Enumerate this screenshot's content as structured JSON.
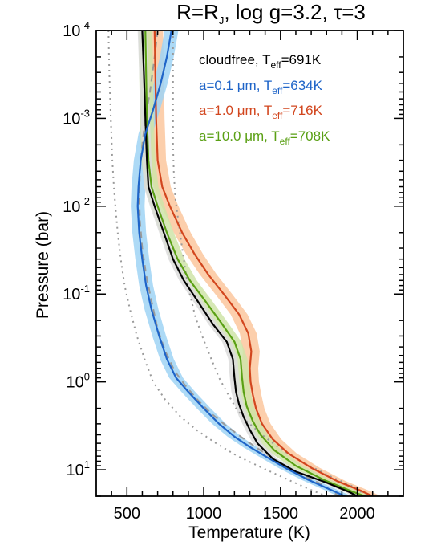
{
  "chart_data": {
    "type": "line",
    "title_parts": {
      "a": "R=R",
      "sub": "J",
      "b": ", log g=3.2, ",
      "tau": "τ",
      "c": "=3"
    },
    "xlabel": "Temperature (K)",
    "ylabel": "Pressure (bar)",
    "xlim": [
      300,
      2300
    ],
    "ylim": [
      0.0001,
      20
    ],
    "yscale": "log",
    "y_inverted": true,
    "x_ticks": [
      500,
      1000,
      1500,
      2000
    ],
    "y_ticks": [
      {
        "value": 0.0001,
        "base": "10",
        "exp": "-4"
      },
      {
        "value": 0.001,
        "base": "10",
        "exp": "-3"
      },
      {
        "value": 0.01,
        "base": "10",
        "exp": "-2"
      },
      {
        "value": 0.1,
        "base": "10",
        "exp": "-1"
      },
      {
        "value": 1,
        "base": "10",
        "exp": "0"
      },
      {
        "value": 10,
        "base": "10",
        "exp": "1"
      }
    ],
    "grid": false,
    "legend_position": "top-right",
    "series": [
      {
        "key": "cloudfree",
        "legend_parts": {
          "pre": "cloudfree, T",
          "sub": "eff",
          "post": "=691K"
        },
        "color": "#000000",
        "band_color": "#dcdcdc",
        "band_halfwidth_k": 30,
        "points": [
          [
            600,
            0.0001
          ],
          [
            610,
            0.0003
          ],
          [
            620,
            0.001
          ],
          [
            630,
            0.003
          ],
          [
            640,
            0.006
          ],
          [
            680,
            0.01
          ],
          [
            740,
            0.02
          ],
          [
            800,
            0.04
          ],
          [
            870,
            0.07
          ],
          [
            960,
            0.12
          ],
          [
            1060,
            0.22
          ],
          [
            1150,
            0.35
          ],
          [
            1190,
            0.55
          ],
          [
            1200,
            0.9
          ],
          [
            1210,
            1.3
          ],
          [
            1230,
            1.8
          ],
          [
            1260,
            2.5
          ],
          [
            1300,
            3.5
          ],
          [
            1350,
            5
          ],
          [
            1450,
            7.5
          ],
          [
            1600,
            10.5
          ],
          [
            1800,
            14
          ],
          [
            1950,
            18
          ],
          [
            2000,
            20
          ]
        ]
      },
      {
        "key": "a01",
        "legend_parts": {
          "pre": "a=0.1 μm, T",
          "sub": "eff",
          "post": "=634K"
        },
        "color": "#1e64c8",
        "band_color": "#9fd4f4",
        "band_halfwidth_k": 45,
        "points": [
          [
            790,
            0.0001
          ],
          [
            760,
            0.0002
          ],
          [
            720,
            0.0004
          ],
          [
            670,
            0.0008
          ],
          [
            620,
            0.0015
          ],
          [
            590,
            0.003
          ],
          [
            575,
            0.006
          ],
          [
            570,
            0.01
          ],
          [
            580,
            0.02
          ],
          [
            600,
            0.04
          ],
          [
            625,
            0.08
          ],
          [
            660,
            0.15
          ],
          [
            710,
            0.3
          ],
          [
            760,
            0.55
          ],
          [
            820,
            0.9
          ],
          [
            900,
            1.3
          ],
          [
            1000,
            2
          ],
          [
            1100,
            3
          ],
          [
            1200,
            4.2
          ],
          [
            1300,
            5.5
          ],
          [
            1400,
            7
          ],
          [
            1530,
            9.5
          ],
          [
            1680,
            13
          ],
          [
            1830,
            17
          ],
          [
            1920,
            20
          ]
        ]
      },
      {
        "key": "a10",
        "legend_parts": {
          "pre": "a=1.0 μm, T",
          "sub": "eff",
          "post": "=716K"
        },
        "color": "#d2461e",
        "band_color": "#fbc79e",
        "band_halfwidth_k": 55,
        "points": [
          [
            680,
            0.0001
          ],
          [
            685,
            0.0003
          ],
          [
            690,
            0.001
          ],
          [
            700,
            0.003
          ],
          [
            730,
            0.006
          ],
          [
            780,
            0.01
          ],
          [
            860,
            0.02
          ],
          [
            940,
            0.035
          ],
          [
            1030,
            0.06
          ],
          [
            1130,
            0.1
          ],
          [
            1230,
            0.17
          ],
          [
            1290,
            0.28
          ],
          [
            1310,
            0.45
          ],
          [
            1300,
            0.7
          ],
          [
            1305,
            1.0
          ],
          [
            1320,
            1.4
          ],
          [
            1340,
            2
          ],
          [
            1380,
            3
          ],
          [
            1450,
            4.5
          ],
          [
            1550,
            6.5
          ],
          [
            1700,
            9.5
          ],
          [
            1870,
            13.5
          ],
          [
            2030,
            17.5
          ],
          [
            2100,
            20
          ]
        ]
      },
      {
        "key": "a100",
        "legend_parts": {
          "pre": "a=10.0 μm, T",
          "sub": "eff",
          "post": "=708K"
        },
        "color": "#5aa014",
        "band_color": "#cfe4a8",
        "band_halfwidth_k": 45,
        "points": [
          [
            620,
            0.0001
          ],
          [
            625,
            0.0003
          ],
          [
            630,
            0.001
          ],
          [
            640,
            0.003
          ],
          [
            660,
            0.006
          ],
          [
            700,
            0.01
          ],
          [
            760,
            0.02
          ],
          [
            830,
            0.04
          ],
          [
            910,
            0.07
          ],
          [
            1010,
            0.12
          ],
          [
            1120,
            0.22
          ],
          [
            1200,
            0.35
          ],
          [
            1240,
            0.55
          ],
          [
            1250,
            0.9
          ],
          [
            1260,
            1.3
          ],
          [
            1280,
            1.9
          ],
          [
            1320,
            2.8
          ],
          [
            1370,
            4
          ],
          [
            1460,
            6
          ],
          [
            1600,
            9
          ],
          [
            1780,
            13
          ],
          [
            1960,
            17.5
          ],
          [
            2050,
            20
          ]
        ]
      },
      {
        "key": "dashed",
        "color": "#9a9a9a",
        "dash": "8,6",
        "points": [
          [
            700,
            0.0001
          ],
          [
            680,
            0.0002
          ],
          [
            650,
            0.0005
          ],
          [
            620,
            0.001
          ],
          [
            600,
            0.002
          ],
          [
            585,
            0.004
          ],
          [
            580,
            0.008
          ],
          [
            585,
            0.015
          ],
          [
            600,
            0.03
          ],
          [
            625,
            0.06
          ],
          [
            660,
            0.12
          ],
          [
            700,
            0.25
          ],
          [
            750,
            0.45
          ],
          [
            810,
            0.75
          ],
          [
            880,
            1.1
          ],
          [
            960,
            1.6
          ],
          [
            1050,
            2.3
          ],
          [
            1150,
            3.2
          ],
          [
            1250,
            4.3
          ],
          [
            1350,
            5.7
          ],
          [
            1480,
            8
          ],
          [
            1620,
            11
          ],
          [
            1780,
            15
          ],
          [
            1880,
            20
          ]
        ]
      },
      {
        "key": "dotted-left",
        "color": "#9a9a9a",
        "dash": "2,5",
        "points": [
          [
            380,
            0.0001
          ],
          [
            385,
            0.0003
          ],
          [
            395,
            0.001
          ],
          [
            405,
            0.003
          ],
          [
            415,
            0.006
          ],
          [
            425,
            0.01
          ],
          [
            440,
            0.02
          ],
          [
            460,
            0.04
          ],
          [
            485,
            0.08
          ],
          [
            520,
            0.15
          ],
          [
            565,
            0.3
          ],
          [
            615,
            0.55
          ],
          [
            670,
            1.0
          ],
          [
            750,
            1.6
          ],
          [
            850,
            2.5
          ],
          [
            960,
            3.6
          ],
          [
            1080,
            5
          ],
          [
            1220,
            7
          ],
          [
            1380,
            9.5
          ],
          [
            1550,
            13
          ],
          [
            1700,
            17
          ],
          [
            1800,
            20
          ]
        ]
      },
      {
        "key": "dotted-right",
        "color": "#9a9a9a",
        "dash": "2,5",
        "points": [
          [
            800,
            0.0001
          ],
          [
            800,
            0.0003
          ],
          [
            800,
            0.001
          ],
          [
            800,
            0.002
          ],
          [
            805,
            0.004
          ],
          [
            815,
            0.008
          ],
          [
            835,
            0.015
          ],
          [
            860,
            0.03
          ],
          [
            885,
            0.06
          ],
          [
            910,
            0.1
          ],
          [
            945,
            0.18
          ],
          [
            990,
            0.3
          ],
          [
            1040,
            0.5
          ],
          [
            1100,
            0.9
          ],
          [
            1160,
            1.4
          ],
          [
            1210,
            2
          ],
          [
            1280,
            2.8
          ],
          [
            1380,
            4
          ],
          [
            1500,
            5.8
          ],
          [
            1660,
            8.5
          ],
          [
            1830,
            12
          ],
          [
            1990,
            16
          ],
          [
            2060,
            20
          ]
        ]
      }
    ]
  }
}
